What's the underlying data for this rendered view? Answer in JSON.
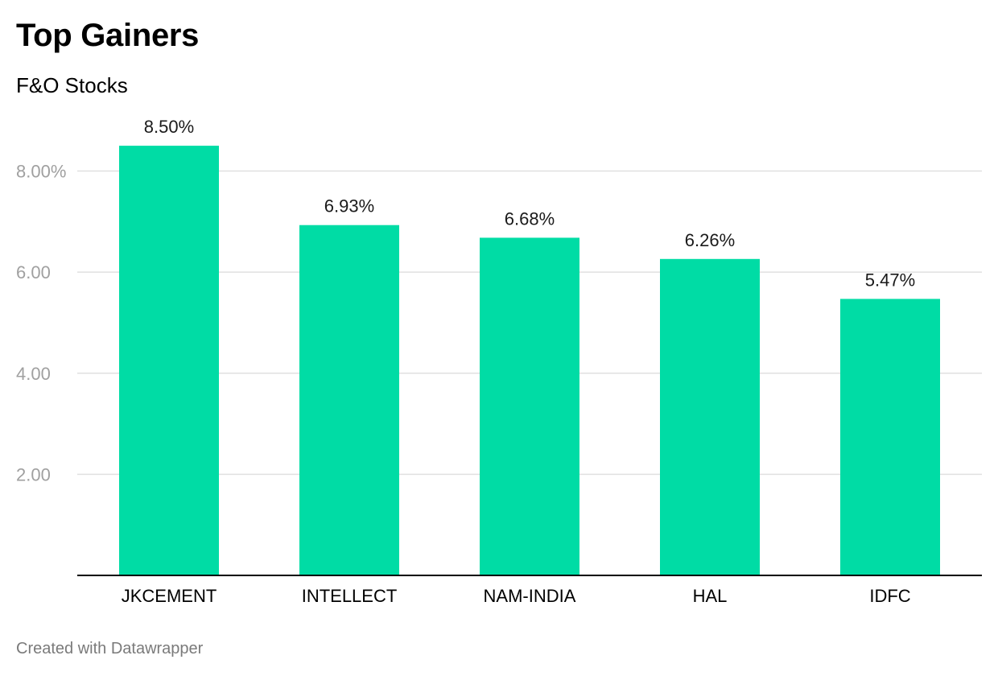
{
  "header": {
    "title": "Top Gainers",
    "subtitle": "F&O Stocks"
  },
  "footer": {
    "credit": "Created with Datawrapper"
  },
  "colors": {
    "bar": "#00dca5",
    "grid": "#e0e0e0",
    "axis": "#000000",
    "tick_text": "#a0a0a0",
    "label_text": "#1a1a1a"
  },
  "chart_data": {
    "type": "bar",
    "title": "Top Gainers",
    "subtitle": "F&O Stocks",
    "categories": [
      "JKCEMENT",
      "INTELLECT",
      "NAM-INDIA",
      "HAL",
      "IDFC"
    ],
    "values": [
      8.5,
      6.93,
      6.68,
      6.26,
      5.47
    ],
    "value_labels": [
      "8.50%",
      "6.93%",
      "6.68%",
      "6.26%",
      "5.47%"
    ],
    "xlabel": "",
    "ylabel": "",
    "ylim": [
      0,
      8.5
    ],
    "yticks": [
      2,
      4,
      6,
      8
    ],
    "ytick_labels": [
      "2.00",
      "4.00",
      "6.00",
      "8.00%"
    ],
    "grid": true,
    "legend": "none"
  }
}
